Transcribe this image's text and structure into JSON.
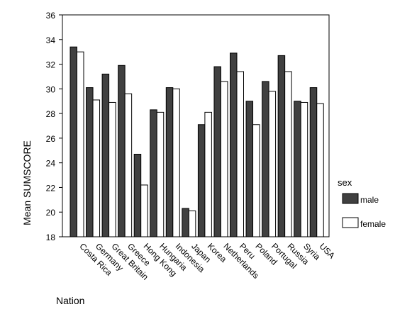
{
  "chart_data": {
    "type": "bar",
    "title": "",
    "xlabel": "Nation",
    "ylabel": "Mean SUMSCORE",
    "ylim": [
      18,
      36
    ],
    "yticks": [
      18,
      20,
      22,
      24,
      26,
      28,
      30,
      32,
      34,
      36
    ],
    "grid": false,
    "legend": {
      "title": "sex",
      "placement": "right"
    },
    "categories": [
      "Costa Rica",
      "Germany",
      "Great Britain",
      "Greece",
      "Hong Kong",
      "Hungaria",
      "Indonesia",
      "Japan",
      "Korea",
      "Netherlands",
      "Peru",
      "Poland",
      "Portugal",
      "Russia",
      "Syria",
      "USA"
    ],
    "series": [
      {
        "name": "male",
        "color": "#404040",
        "values": [
          33.4,
          30.1,
          31.2,
          31.9,
          24.7,
          28.3,
          30.1,
          20.3,
          27.1,
          31.8,
          32.9,
          29.0,
          30.6,
          32.7,
          29.0,
          30.1
        ]
      },
      {
        "name": "female",
        "color": "#ffffff",
        "values": [
          33.0,
          29.1,
          28.9,
          29.6,
          22.2,
          28.1,
          30.0,
          20.1,
          28.1,
          30.6,
          31.4,
          27.1,
          29.8,
          31.4,
          28.9,
          28.8
        ]
      }
    ]
  }
}
